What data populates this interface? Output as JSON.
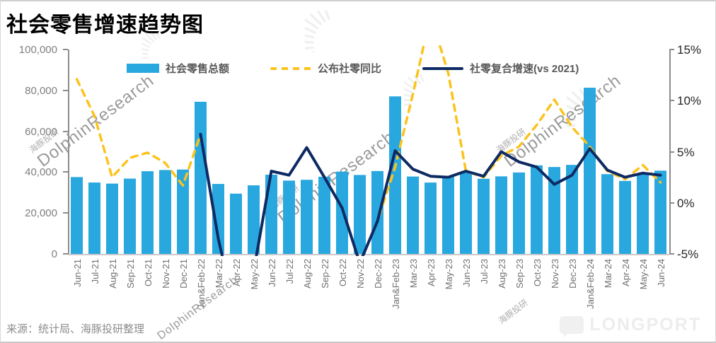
{
  "title": "社会零售增速趋势图",
  "source_note": "来源：统计局、海豚投研整理",
  "brand": "LONGPORT",
  "watermark": {
    "cn": "海豚投研",
    "en": "DolphinResearch"
  },
  "chart_data": {
    "type": "bar+line combo",
    "categories": [
      "Jun-21",
      "Jul-21",
      "Aug-21",
      "Sep-21",
      "Oct-21",
      "Nov-21",
      "Dec-21",
      "Jan&Feb-22",
      "Mar-22",
      "Apr-22",
      "May-22",
      "Jun-22",
      "Jul-22",
      "Aug-22",
      "Sep-22",
      "Oct-22",
      "Nov-22",
      "Dec-22",
      "Jan&Feb-23",
      "Mar-23",
      "Apr-23",
      "May-23",
      "Jun-23",
      "Jul-23",
      "Aug-23",
      "Sep-23",
      "Oct-23",
      "Nov-23",
      "Dec-23",
      "Jan&Feb-24",
      "Mar-24",
      "Apr-24",
      "May-24",
      "Jun-24"
    ],
    "bar_series": {
      "name": "社会零售总额",
      "axis": "left",
      "color": "#29A8E0",
      "values": [
        37586,
        34925,
        34395,
        36833,
        40454,
        41043,
        41269,
        74426,
        34233,
        29483,
        33547,
        38742,
        35870,
        36258,
        37745,
        40271,
        38615,
        40542,
        77067,
        37855,
        34910,
        37803,
        39951,
        36761,
        37933,
        39826,
        43333,
        42505,
        43550,
        81307,
        39020,
        35699,
        39211,
        40732
      ]
    },
    "line_series": [
      {
        "name": "公布社零同比",
        "axis": "right",
        "style": "dashed",
        "color": "#FBC31C",
        "values": [
          12.1,
          8.5,
          2.5,
          4.4,
          4.9,
          3.9,
          1.7,
          6.7,
          -3.5,
          -11.1,
          -6.7,
          3.1,
          2.7,
          5.4,
          2.5,
          -0.5,
          -5.9,
          -1.8,
          3.5,
          10.6,
          18.4,
          12.7,
          3.1,
          2.5,
          4.6,
          5.5,
          7.6,
          10.1,
          7.4,
          5.5,
          3.1,
          2.3,
          3.7,
          2.0
        ]
      },
      {
        "name": "社零复合增速(vs 2021)",
        "axis": "right",
        "style": "solid",
        "color": "#0E2A63",
        "values": [
          null,
          null,
          null,
          null,
          null,
          null,
          null,
          6.7,
          -3.5,
          -11.1,
          -6.7,
          3.1,
          2.7,
          5.4,
          2.5,
          -0.5,
          -5.9,
          -1.8,
          5.1,
          3.3,
          2.6,
          2.5,
          3.1,
          2.6,
          5.0,
          4.0,
          3.5,
          1.8,
          2.7,
          5.3,
          3.2,
          2.5,
          2.9,
          2.7
        ]
      }
    ],
    "left_axis": {
      "range": [
        0,
        100000
      ],
      "tick_values": [
        100000,
        80000,
        60000,
        40000,
        20000,
        0
      ],
      "tick_labels": [
        "100,000",
        "80,000",
        "60,000",
        "40,000",
        "20,000",
        "0"
      ]
    },
    "right_axis": {
      "range": [
        -5,
        15
      ],
      "tick_values": [
        15,
        10,
        5,
        0,
        -5
      ],
      "tick_labels": [
        "15%",
        "10%",
        "5%",
        "0%",
        "-5%"
      ]
    },
    "grid": "off",
    "legend_position": "top-center"
  }
}
